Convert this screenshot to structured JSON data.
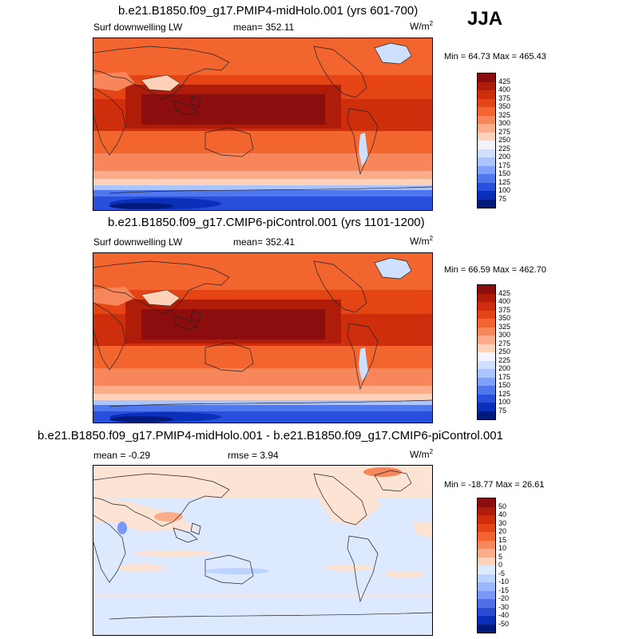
{
  "season": "JJA",
  "panels": [
    {
      "title": "b.e21.B1850.f09_g17.PMIP4-midHolo.001 (yrs 601-700)",
      "left_label": "Surf downwelling LW",
      "center_label": "mean= 352.11",
      "units_base": "W/m",
      "units_exp": "2",
      "minmax": "Min =  64.73 Max = 465.43",
      "colorbar": {
        "labels": [
          "425",
          "400",
          "375",
          "350",
          "325",
          "300",
          "275",
          "250",
          "225",
          "200",
          "175",
          "150",
          "125",
          "100",
          "75"
        ],
        "colors": [
          "#8c0d0d",
          "#b01c0a",
          "#cf2e0d",
          "#e54415",
          "#f2652f",
          "#f7875a",
          "#fbac88",
          "#fdd2b9",
          "#f3f4ff",
          "#cfe0ff",
          "#a9c4ff",
          "#7ea0fa",
          "#5078ee",
          "#2850dc",
          "#0a2fb8",
          "#001a7d"
        ]
      }
    },
    {
      "title": "b.e21.B1850.f09_g17.CMIP6-piControl.001 (yrs 1101-1200)",
      "left_label": "Surf downwelling LW",
      "center_label": "mean= 352.41",
      "units_base": "W/m",
      "units_exp": "2",
      "minmax": "Min =  66.59 Max = 462.70",
      "colorbar": {
        "labels": [
          "425",
          "400",
          "375",
          "350",
          "325",
          "300",
          "275",
          "250",
          "225",
          "200",
          "175",
          "150",
          "125",
          "100",
          "75"
        ],
        "colors": [
          "#8c0d0d",
          "#b01c0a",
          "#cf2e0d",
          "#e54415",
          "#f2652f",
          "#f7875a",
          "#fbac88",
          "#fdd2b9",
          "#f3f4ff",
          "#cfe0ff",
          "#a9c4ff",
          "#7ea0fa",
          "#5078ee",
          "#2850dc",
          "#0a2fb8",
          "#001a7d"
        ]
      }
    },
    {
      "title": "b.e21.B1850.f09_g17.PMIP4-midHolo.001 - b.e21.B1850.f09_g17.CMIP6-piControl.001",
      "left_label": "mean =  -0.29",
      "center_label": "rmse =   3.94",
      "units_base": "W/m",
      "units_exp": "2",
      "minmax": "Min = -18.77 Max =  26.61",
      "colorbar": {
        "labels": [
          "50",
          "40",
          "30",
          "20",
          "15",
          "10",
          "5",
          "0",
          "-5",
          "-10",
          "-15",
          "-20",
          "-30",
          "-40",
          "-50"
        ],
        "colors": [
          "#8c0d0d",
          "#b01c0a",
          "#cf2e0d",
          "#e54415",
          "#f2652f",
          "#f7875a",
          "#fbac88",
          "#fdd2b9",
          "#dce9ff",
          "#bcd3ff",
          "#9bb8ff",
          "#7a98f8",
          "#5070e8",
          "#2a4cd2",
          "#0a2fb8",
          "#001a7d"
        ]
      }
    }
  ],
  "palette": {
    "darkred": "#8c0d0d",
    "red": "#cf2e0d",
    "orange": "#f2652f",
    "salmon": "#f7875a",
    "peach": "#fbac88",
    "lightpeach": "#fdd2b9",
    "white": "#f3f4ff",
    "lightblue": "#cfe0ff",
    "blue": "#5078ee",
    "navy": "#001a7d",
    "diff_neutral": "#dbe8fd",
    "diff_pos": "#fde3d3",
    "land_line": "#222222"
  }
}
